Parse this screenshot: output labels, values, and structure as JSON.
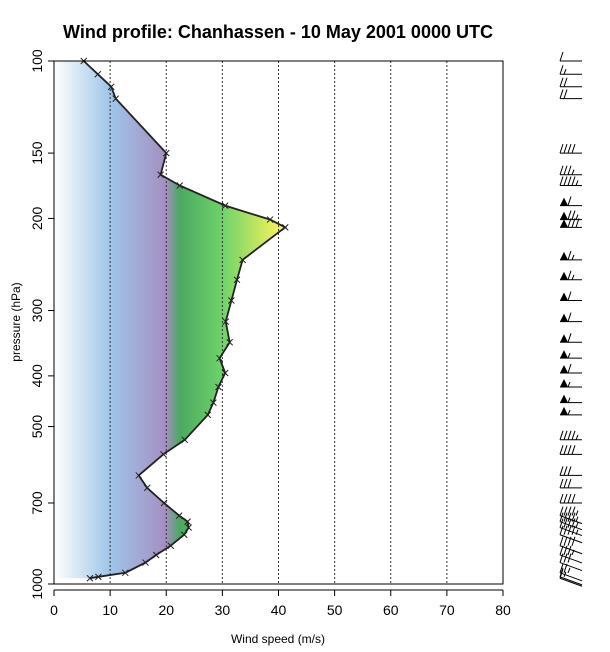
{
  "chart_data": {
    "type": "area",
    "title": "Wind profile: Chanhassen - 10 May 2001 0000 UTC",
    "xlabel": "Wind speed (m/s)",
    "ylabel": "pressure (hPa)",
    "xlim": [
      0,
      80
    ],
    "ylim": [
      1000,
      100
    ],
    "y_scale": "log",
    "x_ticks": [
      "0",
      "10",
      "20",
      "30",
      "40",
      "50",
      "60",
      "70",
      "80"
    ],
    "y_ticks": [
      "100",
      "150",
      "200",
      "300",
      "400",
      "500",
      "700",
      "1000"
    ],
    "grid": "vertical dotted lines at x ticks",
    "fill": "gradient by wind speed: light blue (0) through purple (20), green (30) to yellow (40)",
    "series": [
      {
        "points": [
          {
            "p": 975,
            "ws": 6.4
          },
          {
            "p": 969,
            "ws": 7.9
          },
          {
            "p": 952,
            "ws": 12.7
          },
          {
            "p": 910,
            "ws": 16.3
          },
          {
            "p": 880,
            "ws": 18.2
          },
          {
            "p": 845,
            "ws": 20.8
          },
          {
            "p": 805,
            "ws": 23.2
          },
          {
            "p": 780,
            "ws": 24.0
          },
          {
            "p": 760,
            "ws": 23.8
          },
          {
            "p": 740,
            "ws": 22.3
          },
          {
            "p": 700,
            "ws": 19.6
          },
          {
            "p": 655,
            "ws": 16.6
          },
          {
            "p": 620,
            "ws": 15.1
          },
          {
            "p": 565,
            "ws": 19.5
          },
          {
            "p": 530,
            "ws": 23.3
          },
          {
            "p": 475,
            "ws": 27.4
          },
          {
            "p": 450,
            "ws": 28.4
          },
          {
            "p": 420,
            "ws": 29.3
          },
          {
            "p": 395,
            "ws": 30.5
          },
          {
            "p": 370,
            "ws": 29.5
          },
          {
            "p": 345,
            "ws": 31.3
          },
          {
            "p": 315,
            "ws": 30.6
          },
          {
            "p": 287,
            "ws": 31.6
          },
          {
            "p": 262,
            "ws": 32.6
          },
          {
            "p": 240,
            "ws": 33.6
          },
          {
            "p": 208,
            "ws": 41.2
          },
          {
            "p": 201,
            "ws": 38.5
          },
          {
            "p": 189,
            "ws": 30.5
          },
          {
            "p": 173,
            "ws": 22.4
          },
          {
            "p": 165,
            "ws": 19.0
          },
          {
            "p": 150,
            "ws": 20.0
          },
          {
            "p": 118,
            "ws": 11.0
          },
          {
            "p": 112,
            "ws": 10.2
          },
          {
            "p": 106,
            "ws": 7.8
          },
          {
            "p": 100,
            "ws": 5.3
          }
        ]
      }
    ],
    "wind_barbs": "column of wind barbs on the right side at each sounding level"
  }
}
